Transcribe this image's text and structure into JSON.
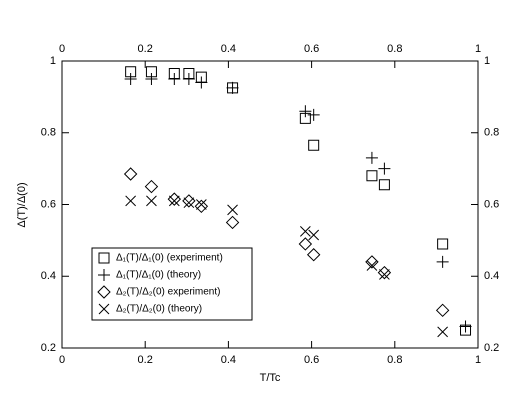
{
  "chart_data": {
    "type": "scatter",
    "x_label": "T/Tc",
    "y_label": "Δ(T)/Δ(0)",
    "xlim": [
      0,
      1
    ],
    "ylim": [
      0.2,
      1
    ],
    "xticks": [
      0,
      0.2,
      0.4,
      0.6,
      0.8,
      1
    ],
    "yticks": [
      0.2,
      0.4,
      0.6,
      0.8,
      1
    ],
    "legend": "lower-left",
    "series": [
      {
        "name": "Δ₁(T)/Δ₁(0)  (experiment)",
        "color": "#000000",
        "marker": "square",
        "x": [
          0.165,
          0.215,
          0.27,
          0.305,
          0.335,
          0.41,
          0.585,
          0.605,
          0.745,
          0.775,
          0.915,
          0.97
        ],
        "values": [
          0.97,
          0.97,
          0.965,
          0.965,
          0.955,
          0.925,
          0.84,
          0.765,
          0.68,
          0.655,
          0.49,
          0.25
        ]
      },
      {
        "name": "Δ₁(T)/Δ₁(0)  (theory)",
        "color": "#000000",
        "marker": "plus",
        "x": [
          0.165,
          0.215,
          0.27,
          0.305,
          0.335,
          0.41,
          0.585,
          0.605,
          0.745,
          0.775,
          0.915,
          0.97
        ],
        "values": [
          0.95,
          0.95,
          0.95,
          0.95,
          0.94,
          0.925,
          0.86,
          0.85,
          0.73,
          0.7,
          0.44,
          0.26
        ]
      },
      {
        "name": "Δ₂(T)/Δ₂(0) experiment)",
        "color": "#000000",
        "marker": "diamond",
        "x": [
          0.165,
          0.215,
          0.27,
          0.305,
          0.335,
          0.41,
          0.585,
          0.605,
          0.745,
          0.775,
          0.915
        ],
        "values": [
          0.685,
          0.65,
          0.615,
          0.61,
          0.595,
          0.55,
          0.49,
          0.46,
          0.44,
          0.41,
          0.305
        ]
      },
      {
        "name": "Δ₂(T)/Δ₂(0)  (theory)",
        "color": "#000000",
        "marker": "cross",
        "x": [
          0.165,
          0.215,
          0.27,
          0.305,
          0.335,
          0.41,
          0.585,
          0.605,
          0.745,
          0.775,
          0.915
        ],
        "values": [
          0.61,
          0.61,
          0.61,
          0.605,
          0.6,
          0.585,
          0.525,
          0.515,
          0.43,
          0.405,
          0.245
        ]
      }
    ]
  }
}
